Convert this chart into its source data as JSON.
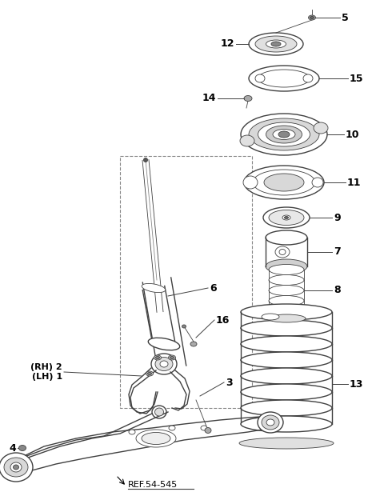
{
  "bg_color": "#ffffff",
  "line_color": "#404040",
  "text_color": "#000000",
  "fig_w": 4.8,
  "fig_h": 6.3,
  "dpi": 100,
  "ref_label": "REF.54-545"
}
